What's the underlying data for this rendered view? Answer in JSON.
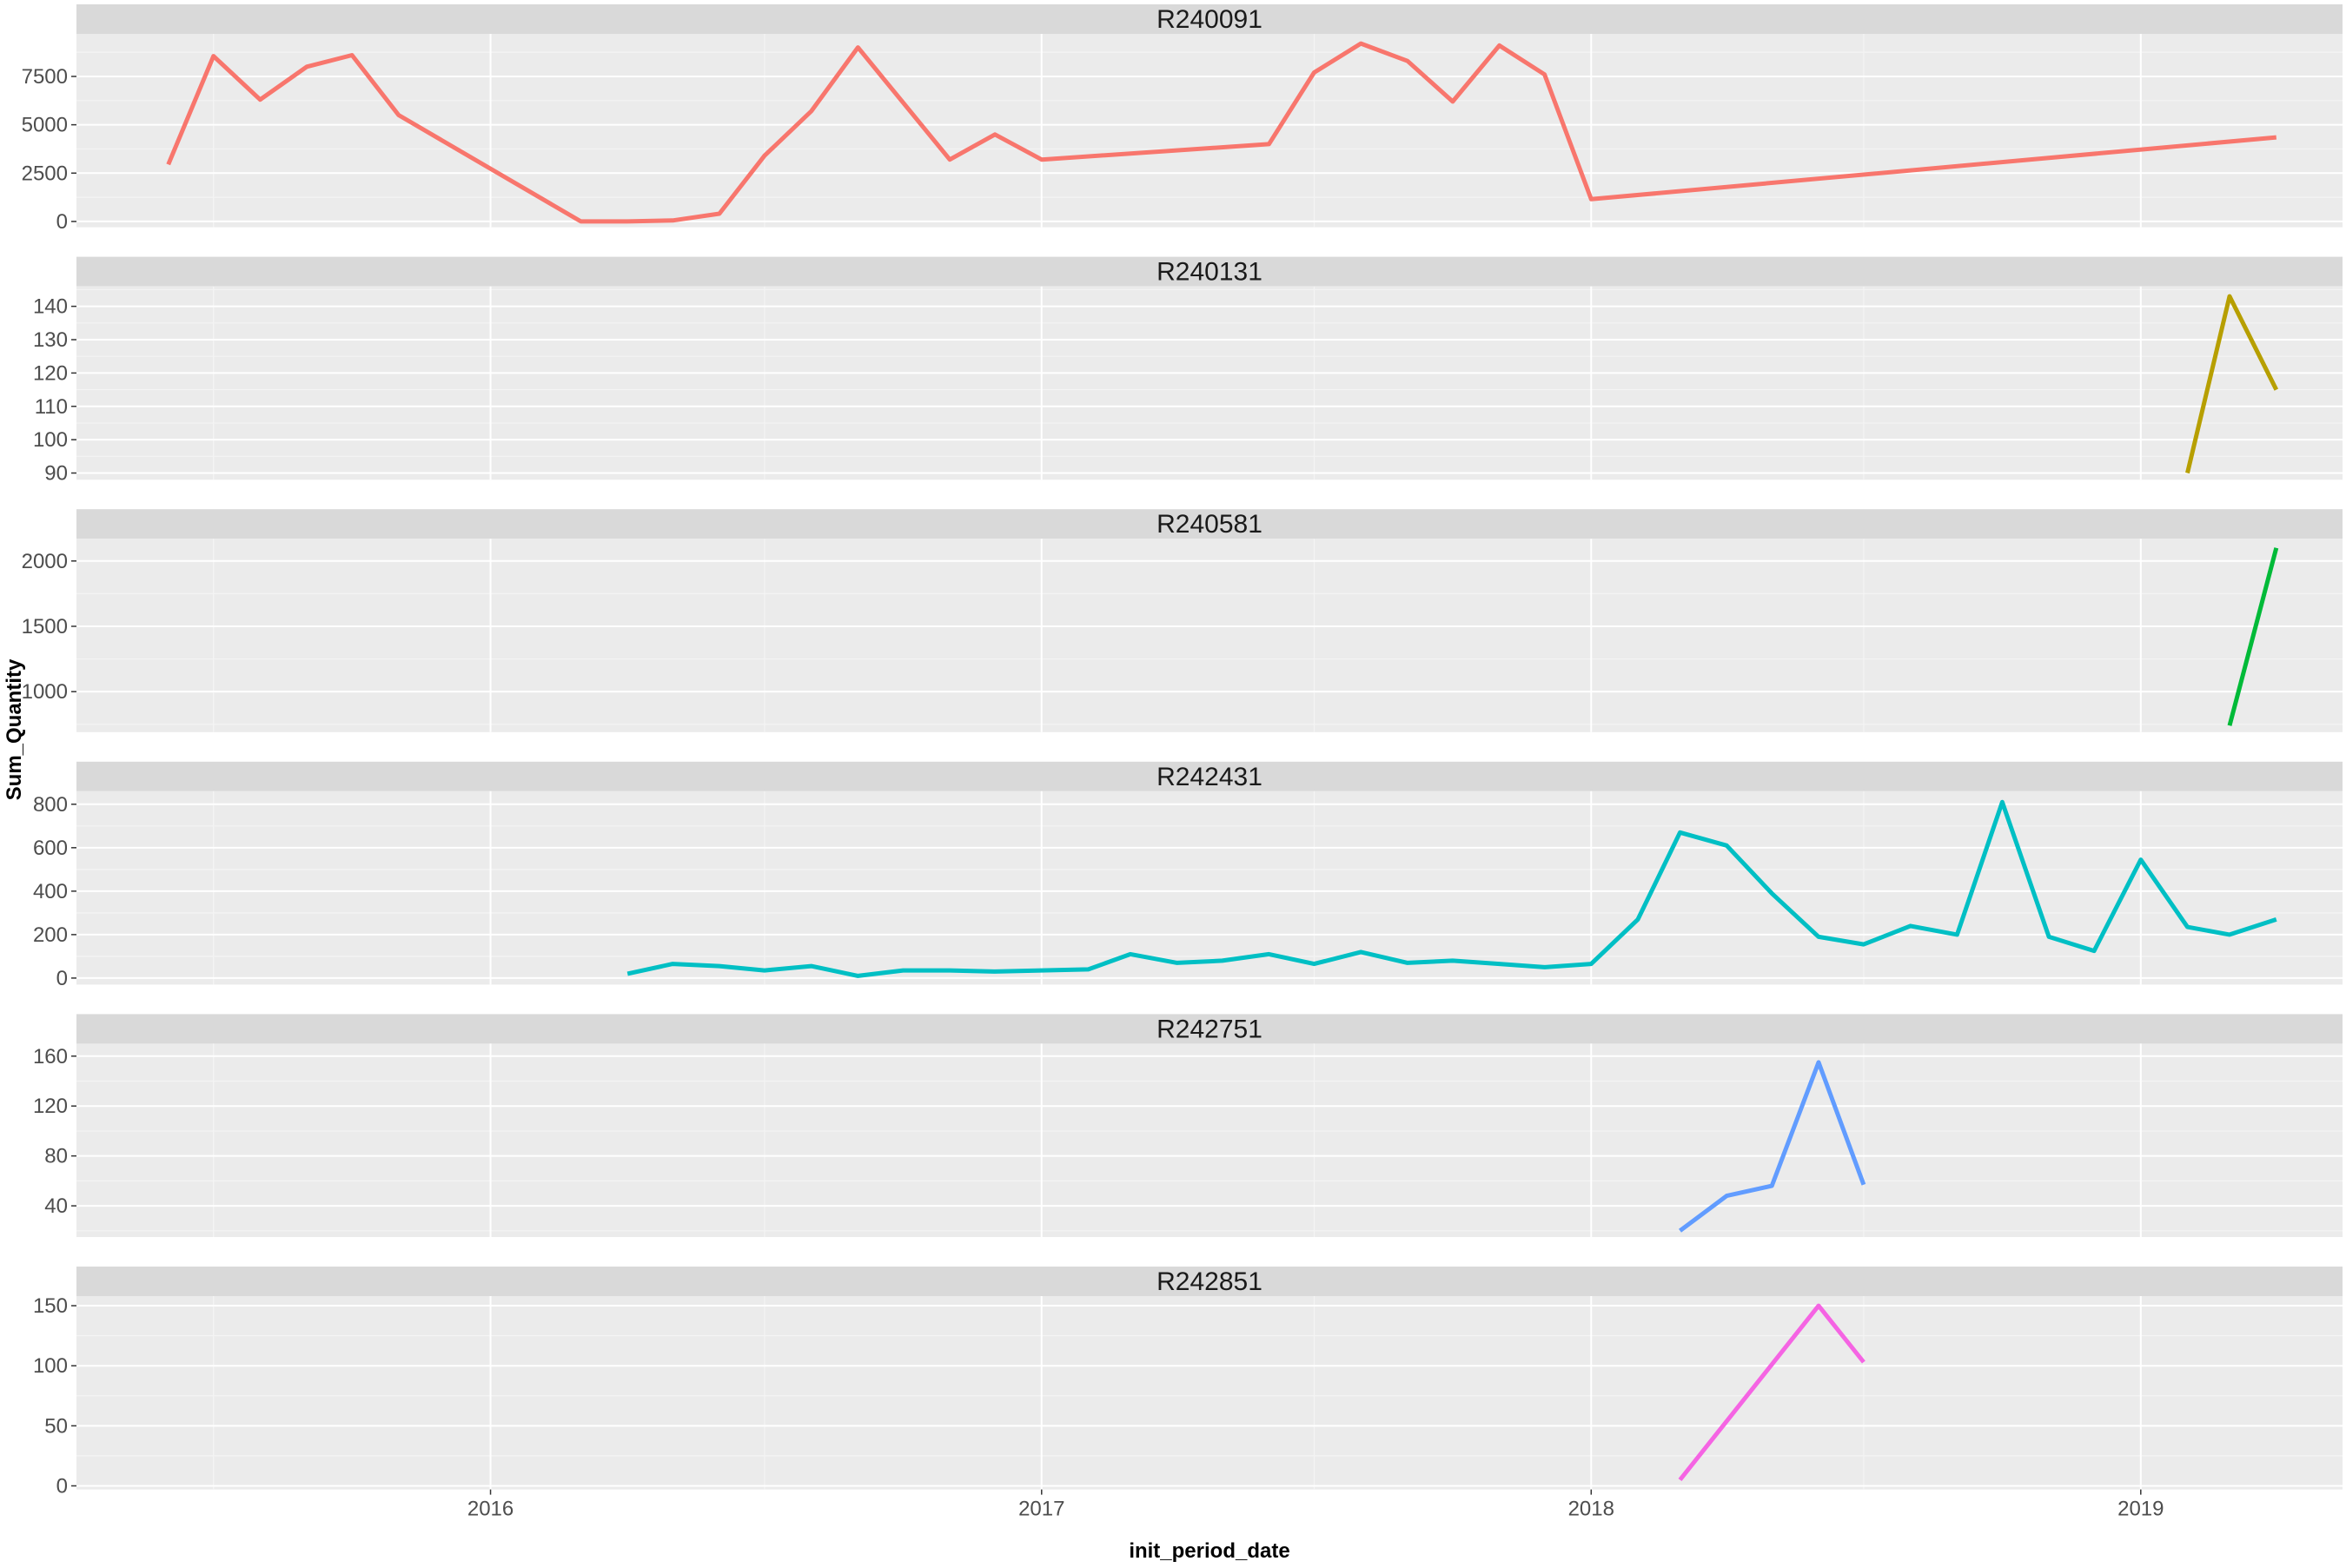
{
  "chart_data": {
    "type": "line",
    "layout": "faceted-vertical",
    "xlabel": "init_period_date",
    "ylabel": "Sum_Quantity",
    "x_axis": {
      "type": "date",
      "ticks": [
        "2016",
        "2017",
        "2018",
        "2019"
      ],
      "range": [
        "2015-04-01",
        "2019-05-15"
      ]
    },
    "grid": true,
    "legend": "none",
    "panels": [
      {
        "label": "R240091",
        "color": "#F8766D",
        "ylim": [
          -300,
          9700
        ],
        "yticks": [
          0,
          2500,
          5000,
          7500
        ],
        "points": [
          [
            "2015-06-01",
            2950
          ],
          [
            "2015-07-01",
            8550
          ],
          [
            "2015-08-01",
            6300
          ],
          [
            "2015-09-01",
            8000
          ],
          [
            "2015-10-01",
            8600
          ],
          [
            "2015-11-01",
            5500
          ],
          [
            "2016-03-01",
            0
          ],
          [
            "2016-04-01",
            0
          ],
          [
            "2016-05-01",
            50
          ],
          [
            "2016-06-01",
            400
          ],
          [
            "2016-07-01",
            3400
          ],
          [
            "2016-08-01",
            5700
          ],
          [
            "2016-09-01",
            9000
          ],
          [
            "2016-11-01",
            3200
          ],
          [
            "2016-12-01",
            4500
          ],
          [
            "2017-01-01",
            3200
          ],
          [
            "2017-06-01",
            4000
          ],
          [
            "2017-07-01",
            7700
          ],
          [
            "2017-08-01",
            9200
          ],
          [
            "2017-09-01",
            8300
          ],
          [
            "2017-10-01",
            6200
          ],
          [
            "2017-11-01",
            9100
          ],
          [
            "2017-12-01",
            7600
          ],
          [
            "2018-01-01",
            1150
          ],
          [
            "2019-04-01",
            4350
          ]
        ]
      },
      {
        "label": "R240131",
        "color": "#B79F00",
        "ylim": [
          88,
          146
        ],
        "yticks": [
          90,
          100,
          110,
          120,
          130,
          140
        ],
        "points": [
          [
            "2019-02-01",
            90
          ],
          [
            "2019-03-01",
            143
          ],
          [
            "2019-04-01",
            115
          ]
        ]
      },
      {
        "label": "R240581",
        "color": "#00BA38",
        "ylim": [
          690,
          2170
        ],
        "yticks": [
          1000,
          1500,
          2000
        ],
        "points": [
          [
            "2019-03-01",
            740
          ],
          [
            "2019-04-01",
            2100
          ]
        ]
      },
      {
        "label": "R242431",
        "color": "#00BFC4",
        "ylim": [
          -30,
          860
        ],
        "yticks": [
          0,
          200,
          400,
          600,
          800
        ],
        "points": [
          [
            "2016-04-01",
            20
          ],
          [
            "2016-05-01",
            65
          ],
          [
            "2016-06-01",
            55
          ],
          [
            "2016-07-01",
            35
          ],
          [
            "2016-08-01",
            55
          ],
          [
            "2016-09-01",
            10
          ],
          [
            "2016-10-01",
            35
          ],
          [
            "2016-11-01",
            35
          ],
          [
            "2016-12-01",
            30
          ],
          [
            "2017-01-01",
            35
          ],
          [
            "2017-02-01",
            40
          ],
          [
            "2017-03-01",
            110
          ],
          [
            "2017-04-01",
            70
          ],
          [
            "2017-05-01",
            80
          ],
          [
            "2017-06-01",
            110
          ],
          [
            "2017-07-01",
            65
          ],
          [
            "2017-08-01",
            120
          ],
          [
            "2017-09-01",
            70
          ],
          [
            "2017-10-01",
            80
          ],
          [
            "2017-11-01",
            65
          ],
          [
            "2017-12-01",
            50
          ],
          [
            "2018-01-01",
            65
          ],
          [
            "2018-02-01",
            270
          ],
          [
            "2018-03-01",
            670
          ],
          [
            "2018-04-01",
            610
          ],
          [
            "2018-05-01",
            390
          ],
          [
            "2018-06-01",
            190
          ],
          [
            "2018-07-01",
            155
          ],
          [
            "2018-08-01",
            240
          ],
          [
            "2018-09-01",
            200
          ],
          [
            "2018-10-01",
            810
          ],
          [
            "2018-11-01",
            190
          ],
          [
            "2018-12-01",
            125
          ],
          [
            "2019-01-01",
            545
          ],
          [
            "2019-02-01",
            235
          ],
          [
            "2019-03-01",
            200
          ],
          [
            "2019-04-01",
            270
          ]
        ]
      },
      {
        "label": "R242751",
        "color": "#619CFF",
        "ylim": [
          15,
          170
        ],
        "yticks": [
          40,
          80,
          120,
          160
        ],
        "points": [
          [
            "2018-03-01",
            20
          ],
          [
            "2018-04-01",
            48
          ],
          [
            "2018-05-01",
            56
          ],
          [
            "2018-06-01",
            155
          ],
          [
            "2018-07-01",
            57
          ]
        ]
      },
      {
        "label": "R242851",
        "color": "#F564E3",
        "ylim": [
          -3,
          158
        ],
        "yticks": [
          0,
          50,
          100,
          150
        ],
        "points": [
          [
            "2018-03-01",
            5
          ],
          [
            "2018-06-01",
            150
          ],
          [
            "2018-07-01",
            103
          ]
        ]
      }
    ]
  }
}
